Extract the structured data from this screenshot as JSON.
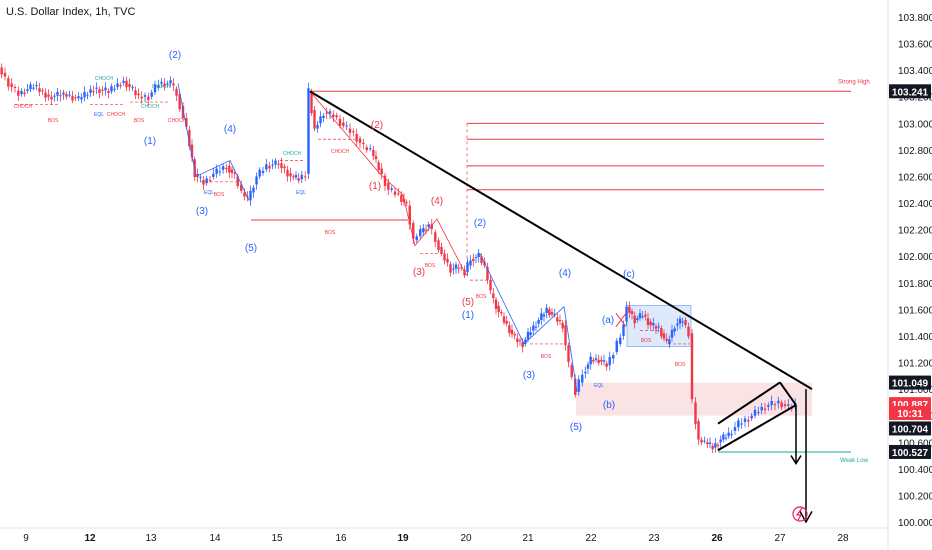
{
  "header": {
    "title": "U.S. Dollar Index, 1h, TVC"
  },
  "colors": {
    "up": "#2962ff",
    "down": "#f23645",
    "trend": "#000000",
    "level": "#f23645",
    "weak_low": "#26a69a",
    "zone": "#f8d7da",
    "box": "#d6e4fb"
  },
  "chart_data": {
    "type": "candlestick",
    "title": "U.S. Dollar Index, 1h, TVC",
    "x_tick_labels": [
      "9",
      "12",
      "13",
      "14",
      "15",
      "16",
      "19",
      "20",
      "21",
      "22",
      "23",
      "26",
      "27",
      "28"
    ],
    "y_tick_labels": [
      "103.800",
      "103.600",
      "103.400",
      "103.200",
      "103.000",
      "102.800",
      "102.600",
      "102.400",
      "102.200",
      "102.000",
      "101.800",
      "101.600",
      "101.400",
      "101.200",
      "101.000",
      "100.800",
      "100.600",
      "100.400",
      "100.200",
      "100.000"
    ],
    "ylim": [
      100.0,
      103.9
    ],
    "price_tags": [
      {
        "label": "103.241",
        "value": 103.241,
        "color": "#131722"
      },
      {
        "label": "101.049",
        "value": 101.049,
        "color": "#131722"
      },
      {
        "label": "100.887",
        "value": 100.887,
        "color": "#f23645"
      },
      {
        "label": "10:31",
        "value": 100.82,
        "color": "#f23645"
      },
      {
        "label": "100.704",
        "value": 100.704,
        "color": "#131722"
      },
      {
        "label": "100.527",
        "value": 100.527,
        "color": "#131722"
      }
    ],
    "levels": [
      {
        "label": "Strong High",
        "value": 103.241
      },
      {
        "label": "",
        "value": 103.0
      },
      {
        "label": "",
        "value": 102.88
      },
      {
        "label": "",
        "value": 102.68
      },
      {
        "label": "",
        "value": 102.5
      }
    ],
    "weak_low": {
      "label": "Weak Low",
      "value": 100.527
    },
    "wave_labels": [
      {
        "text": "(2)",
        "x": 175,
        "y": 58,
        "color": "#2962ff"
      },
      {
        "text": "(1)",
        "x": 150,
        "y": 144,
        "color": "#2962ff"
      },
      {
        "text": "(4)",
        "x": 230,
        "y": 132,
        "color": "#2962ff"
      },
      {
        "text": "(3)",
        "x": 202,
        "y": 214,
        "color": "#2962ff"
      },
      {
        "text": "(5)",
        "x": 251,
        "y": 251,
        "color": "#2962ff"
      },
      {
        "text": "(2)",
        "x": 377,
        "y": 128,
        "color": "#f23645"
      },
      {
        "text": "(1)",
        "x": 375,
        "y": 189,
        "color": "#f23645"
      },
      {
        "text": "(4)",
        "x": 437,
        "y": 204,
        "color": "#f23645"
      },
      {
        "text": "(3)",
        "x": 419,
        "y": 275,
        "color": "#f23645"
      },
      {
        "text": "(5)",
        "x": 468,
        "y": 305,
        "color": "#f23645"
      },
      {
        "text": "(2)",
        "x": 480,
        "y": 226,
        "color": "#2962ff"
      },
      {
        "text": "(1)",
        "x": 468,
        "y": 318,
        "color": "#2962ff"
      },
      {
        "text": "(4)",
        "x": 565,
        "y": 276,
        "color": "#2962ff"
      },
      {
        "text": "(3)",
        "x": 529,
        "y": 378,
        "color": "#2962ff"
      },
      {
        "text": "(5)",
        "x": 576,
        "y": 430,
        "color": "#2962ff"
      },
      {
        "text": "(c)",
        "x": 629,
        "y": 277,
        "color": "#2962ff"
      },
      {
        "text": "(a)",
        "x": 608,
        "y": 323,
        "color": "#2962ff"
      },
      {
        "text": "(b)",
        "x": 609,
        "y": 408,
        "color": "#2962ff"
      }
    ],
    "small_labels": [
      {
        "text": "CHOCH",
        "x": 23,
        "y": 108,
        "color": "#f23645"
      },
      {
        "text": "BOS",
        "x": 53,
        "y": 122,
        "color": "#f23645"
      },
      {
        "text": "CHOCH",
        "x": 104,
        "y": 80,
        "color": "#26a69a"
      },
      {
        "text": "EQL",
        "x": 99,
        "y": 116,
        "color": "#2962ff"
      },
      {
        "text": "CHOCH",
        "x": 116,
        "y": 116,
        "color": "#f23645"
      },
      {
        "text": "BOS",
        "x": 139,
        "y": 122,
        "color": "#f23645"
      },
      {
        "text": "CHOCH",
        "x": 161,
        "y": 88,
        "color": "#26a69a"
      },
      {
        "text": "CHOCH",
        "x": 150,
        "y": 108,
        "color": "#26a69a"
      },
      {
        "text": "CHOCH",
        "x": 177,
        "y": 122,
        "color": "#f23645"
      },
      {
        "text": "EQL",
        "x": 209,
        "y": 194,
        "color": "#2962ff"
      },
      {
        "text": "BOS",
        "x": 219,
        "y": 196,
        "color": "#f23645"
      },
      {
        "text": "CHOCH",
        "x": 292,
        "y": 155,
        "color": "#26a69a"
      },
      {
        "text": "EQL",
        "x": 301,
        "y": 194,
        "color": "#2962ff"
      },
      {
        "text": "CHOCH",
        "x": 340,
        "y": 153,
        "color": "#f23645"
      },
      {
        "text": "BOS",
        "x": 330,
        "y": 234,
        "color": "#f23645"
      },
      {
        "text": "BOS",
        "x": 430,
        "y": 267,
        "color": "#f23645"
      },
      {
        "text": "BOS",
        "x": 481,
        "y": 298,
        "color": "#f23645"
      },
      {
        "text": "BOS",
        "x": 546,
        "y": 358,
        "color": "#f23645"
      },
      {
        "text": "EQL",
        "x": 599,
        "y": 387,
        "color": "#2962ff"
      },
      {
        "text": "BOS",
        "x": 646,
        "y": 342,
        "color": "#f23645"
      },
      {
        "text": "BOS",
        "x": 680,
        "y": 366,
        "color": "#f23645"
      }
    ]
  }
}
